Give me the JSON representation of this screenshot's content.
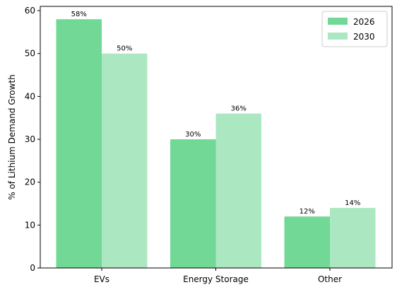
{
  "chart_data": {
    "type": "bar",
    "categories": [
      "EVs",
      "Energy Storage",
      "Other"
    ],
    "series": [
      {
        "name": "2026",
        "values": [
          58,
          30,
          12
        ],
        "labels": [
          "58%",
          "30%",
          "12%"
        ],
        "color": "#72d895"
      },
      {
        "name": "2030",
        "values": [
          50,
          36,
          14
        ],
        "labels": [
          "50%",
          "36%",
          "14%"
        ],
        "color": "#abe8c1"
      }
    ],
    "title": "",
    "xlabel": "",
    "ylabel": "% of Lithium Demand Growth",
    "ylim": [
      0,
      61
    ],
    "yticks": [
      "0",
      "10",
      "20",
      "30",
      "40",
      "50",
      "60"
    ],
    "grid": false,
    "legend_position": "top-right"
  }
}
